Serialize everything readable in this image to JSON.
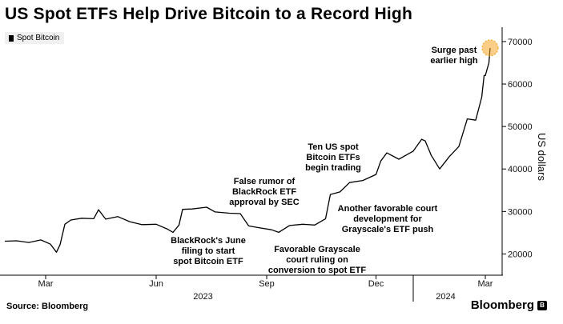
{
  "header": {
    "title": "US Spot ETFs Help Drive Bitcoin to a Record High"
  },
  "legend": {
    "label": "Spot Bitcoin"
  },
  "footer": {
    "source": "Source: Bloomberg",
    "brand": "Bloomberg"
  },
  "chart_data": {
    "type": "line",
    "title": "US Spot ETFs Help Drive Bitcoin to a Record High",
    "ylabel": "US dollars",
    "ylim": [
      15000,
      73000
    ],
    "yticks": [
      "20000",
      "30000",
      "40000",
      "50000",
      "60000",
      "70000"
    ],
    "xticks": [
      "Mar",
      "Jun",
      "Sep",
      "Dec",
      "Mar"
    ],
    "year_labels": [
      "2023",
      "2024"
    ],
    "grid": false,
    "legend_position": "top-left",
    "series": [
      {
        "name": "Spot Bitcoin",
        "color": "#000000",
        "x": [
          "2023-01-26",
          "2023-02-05",
          "2023-02-15",
          "2023-02-25",
          "2023-03-05",
          "2023-03-10",
          "2023-03-13",
          "2023-03-17",
          "2023-03-22",
          "2023-03-31",
          "2023-04-10",
          "2023-04-14",
          "2023-04-20",
          "2023-04-30",
          "2023-05-10",
          "2023-05-20",
          "2023-06-01",
          "2023-06-10",
          "2023-06-15",
          "2023-06-20",
          "2023-06-23",
          "2023-07-01",
          "2023-07-13",
          "2023-07-20",
          "2023-08-01",
          "2023-08-10",
          "2023-08-17",
          "2023-08-25",
          "2023-09-05",
          "2023-09-11",
          "2023-09-20",
          "2023-10-01",
          "2023-10-11",
          "2023-10-20",
          "2023-10-24",
          "2023-11-01",
          "2023-11-09",
          "2023-11-20",
          "2023-12-01",
          "2023-12-05",
          "2023-12-10",
          "2023-12-20",
          "2024-01-01",
          "2024-01-08",
          "2024-01-11",
          "2024-01-16",
          "2024-01-23",
          "2024-01-31",
          "2024-02-08",
          "2024-02-15",
          "2024-02-22",
          "2024-02-27",
          "2024-02-29",
          "2024-03-01",
          "2024-03-04",
          "2024-03-05"
        ],
        "values": [
          23000,
          23100,
          22700,
          23300,
          22300,
          20400,
          22200,
          27000,
          28000,
          28400,
          28300,
          30400,
          28200,
          28800,
          27600,
          26900,
          27000,
          25900,
          25100,
          26800,
          30500,
          30600,
          31000,
          29900,
          29600,
          29500,
          26600,
          26200,
          25700,
          25100,
          26700,
          27000,
          26800,
          28300,
          34000,
          34600,
          36800,
          37300,
          38700,
          41900,
          43800,
          42300,
          44200,
          47000,
          46600,
          43200,
          40000,
          42900,
          45300,
          51800,
          51500,
          56900,
          62000,
          62000,
          65000,
          68500
        ]
      }
    ],
    "annotations": [
      {
        "text": "BlackRock's June\nfiling to start\nspot Bitcoin ETF",
        "x": "2023-06-15",
        "y": 25100,
        "side": "below"
      },
      {
        "text": "False rumor of\nBlackRock ETF\napproval by SEC",
        "x": "2023-10-16",
        "y": 28300,
        "side": "above"
      },
      {
        "text": "Favorable Grayscale\ncourt ruling on\nconversion to spot ETF",
        "x": "2023-08-29",
        "y": 26100,
        "side": "below"
      },
      {
        "text": "Ten US spot\nBitcoin ETFs\nbegin trading",
        "x": "2024-01-11",
        "y": 46600,
        "side": "above"
      },
      {
        "text": "Another favorable court\ndevelopment for\nGrayscale's ETF push",
        "x": "2023-10-24",
        "y": 34000,
        "side": "right"
      },
      {
        "text": "Surge past\nearlier high",
        "x": "2024-03-05",
        "y": 68500,
        "side": "left",
        "highlight_color": "#f5a623"
      }
    ]
  }
}
